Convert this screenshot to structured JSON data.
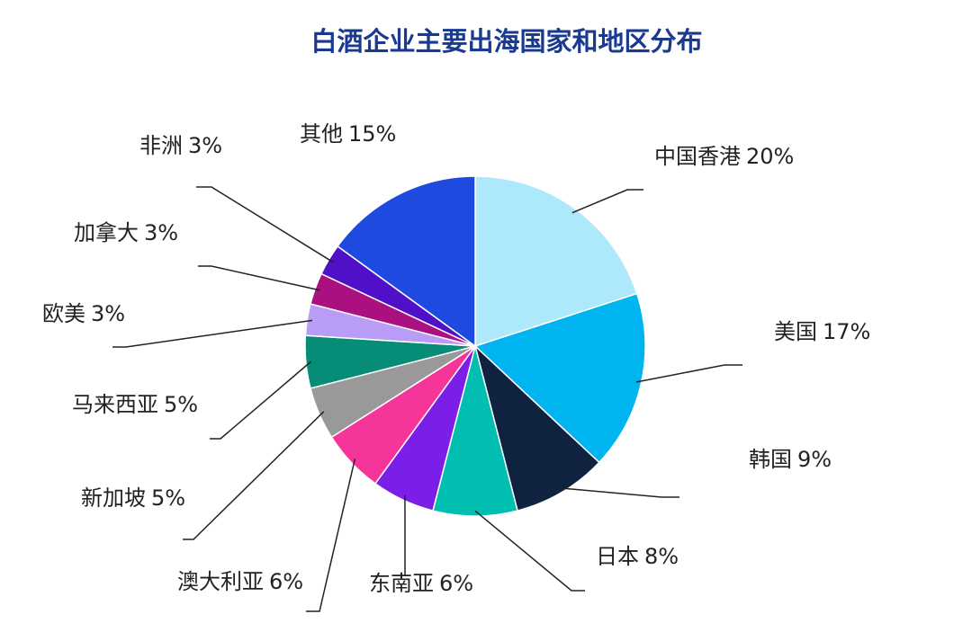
{
  "chart_data": {
    "type": "pie",
    "title": "白酒企业主要出海国家和地区分布",
    "categories": [
      "中国香港",
      "美国",
      "韩国",
      "日本",
      "东南亚",
      "澳大利亚",
      "新加坡",
      "马来西亚",
      "欧美",
      "加拿大",
      "非洲",
      "其他"
    ],
    "values": [
      20,
      17,
      9,
      8,
      6,
      6,
      5,
      5,
      3,
      3,
      3,
      15
    ],
    "value_labels": [
      "20%",
      "17%",
      "9%",
      "8%",
      "6%",
      "6%",
      "5%",
      "5%",
      "3%",
      "3%",
      "3%",
      "15%"
    ],
    "colors": [
      "#aee9fb",
      "#00b4f0",
      "#0f2340",
      "#00bfb0",
      "#7a1ee8",
      "#f5359a",
      "#999999",
      "#078c78",
      "#b89cf5",
      "#aa1080",
      "#5010c8",
      "#1f4ae0"
    ]
  }
}
